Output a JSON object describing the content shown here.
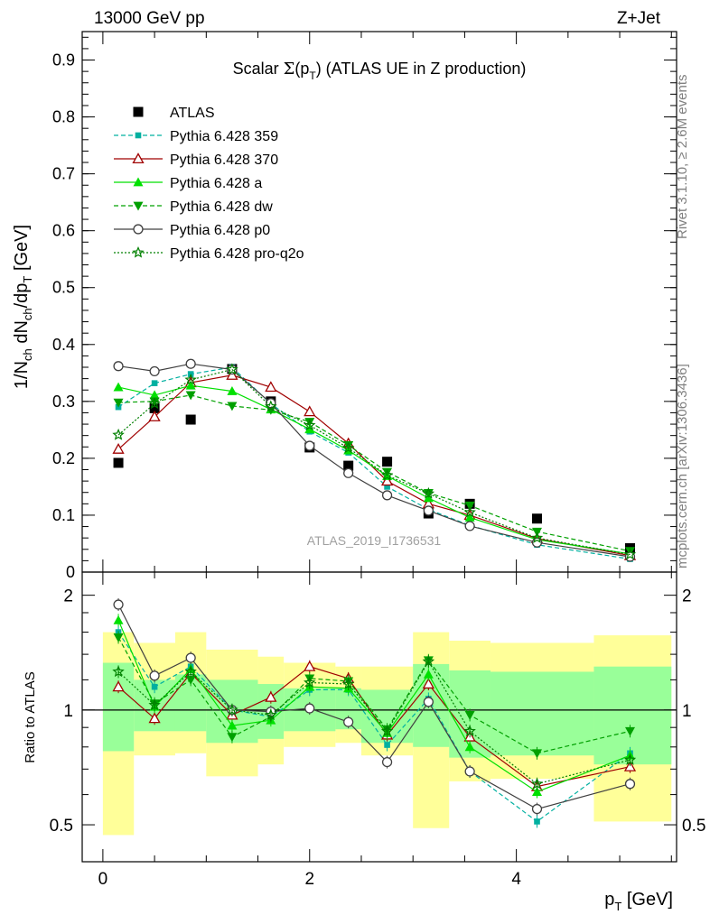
{
  "header": {
    "left": "13000 GeV pp",
    "right": "Z+Jet"
  },
  "side_labels": {
    "rivet": "Rivet 3.1.10, ≥ 2.6M events",
    "mcplots": "mcplots.cern.ch [arXiv:1306.3436]"
  },
  "watermark": "ATLAS_2019_I1736531",
  "chart_data": [
    {
      "type": "line",
      "panel": "main",
      "title": "Scalar Σ(p_T) (ATLAS UE in Z production)",
      "ylabel": "1/N_ch dN_ch/dp_T [GeV]",
      "xlim": [
        -0.2,
        5.55
      ],
      "ylim": [
        0,
        0.95
      ],
      "yticks": [
        "0",
        "0.1",
        "0.2",
        "0.3",
        "0.4",
        "0.5",
        "0.6",
        "0.7",
        "0.8",
        "0.9"
      ],
      "x": [
        0.15,
        0.5,
        0.85,
        1.25,
        1.625,
        2.0,
        2.375,
        2.75,
        3.15,
        3.55,
        4.2,
        5.1
      ],
      "series": [
        {
          "name": "ATLAS",
          "color": "#000000",
          "marker": "square",
          "dash": "none",
          "values": [
            0.192,
            0.288,
            0.268,
            0.357,
            0.3,
            0.219,
            0.187,
            0.194,
            0.103,
            0.12,
            0.094,
            0.042
          ]
        },
        {
          "name": "Pythia 6.428 359",
          "color": "#00b0a0",
          "marker": "square-small",
          "dash": "dashed",
          "values": [
            0.29,
            0.332,
            0.348,
            0.36,
            0.296,
            0.247,
            0.21,
            0.15,
            0.11,
            0.082,
            0.048,
            0.023
          ]
        },
        {
          "name": "Pythia 6.428 370",
          "color": "#a00000",
          "marker": "triangle-open",
          "dash": "solid",
          "values": [
            0.216,
            0.273,
            0.333,
            0.346,
            0.325,
            0.282,
            0.226,
            0.16,
            0.12,
            0.1,
            0.059,
            0.029
          ]
        },
        {
          "name": "Pythia 6.428 a",
          "color": "#00e000",
          "marker": "triangle",
          "dash": "solid",
          "values": [
            0.325,
            0.311,
            0.328,
            0.318,
            0.286,
            0.251,
            0.214,
            0.169,
            0.13,
            0.096,
            0.057,
            0.032
          ]
        },
        {
          "name": "Pythia 6.428 dw",
          "color": "#00a000",
          "marker": "triangle-down",
          "dash": "dashed",
          "values": [
            0.298,
            0.3,
            0.311,
            0.292,
            0.285,
            0.264,
            0.223,
            0.176,
            0.139,
            0.117,
            0.071,
            0.037
          ]
        },
        {
          "name": "Pythia 6.428 p0",
          "color": "#404040",
          "marker": "circle-open",
          "dash": "solid",
          "values": [
            0.362,
            0.353,
            0.366,
            0.356,
            0.297,
            0.222,
            0.174,
            0.135,
            0.108,
            0.081,
            0.052,
            0.027
          ]
        },
        {
          "name": "Pythia 6.428 pro-q2o",
          "color": "#008000",
          "marker": "star",
          "dash": "dotted",
          "values": [
            0.241,
            0.296,
            0.338,
            0.356,
            0.291,
            0.258,
            0.218,
            0.17,
            0.138,
            0.105,
            0.06,
            0.031
          ]
        }
      ]
    },
    {
      "type": "line",
      "panel": "ratio",
      "ylabel": "Ratio to ATLAS",
      "xlabel": "p_T [GeV]",
      "xlim": [
        -0.2,
        5.55
      ],
      "ylim": [
        0.4,
        2.3
      ],
      "log_y": true,
      "yticks": [
        "0.5",
        "1",
        "2"
      ],
      "xticks": [
        "0",
        "2",
        "4"
      ],
      "bin_edges": [
        0.0,
        0.3,
        0.7,
        1.0,
        1.5,
        1.75,
        2.25,
        2.5,
        3.0,
        3.35,
        3.75,
        4.75,
        5.5
      ],
      "band_yellow": [
        [
          0.47,
          1.6
        ],
        [
          0.76,
          1.5
        ],
        [
          0.77,
          1.6
        ],
        [
          0.67,
          1.44
        ],
        [
          0.72,
          1.38
        ],
        [
          0.8,
          1.33
        ],
        [
          0.82,
          1.3
        ],
        [
          0.76,
          1.3
        ],
        [
          0.49,
          1.6
        ],
        [
          0.65,
          1.52
        ],
        [
          0.66,
          1.5
        ],
        [
          0.51,
          1.57
        ]
      ],
      "band_green": [
        [
          0.78,
          1.33
        ],
        [
          0.88,
          1.2
        ],
        [
          0.88,
          1.24
        ],
        [
          0.82,
          1.2
        ],
        [
          0.84,
          1.17
        ],
        [
          0.88,
          1.14
        ],
        [
          0.89,
          1.14
        ],
        [
          0.82,
          1.13
        ],
        [
          0.8,
          1.32
        ],
        [
          0.75,
          1.27
        ],
        [
          0.76,
          1.26
        ],
        [
          0.72,
          1.3
        ]
      ],
      "series": [
        {
          "name": "Pythia 6.428 359",
          "values": [
            1.6,
            1.15,
            1.3,
            1.0,
            0.96,
            1.13,
            1.13,
            0.81,
            1.07,
            0.69,
            0.51,
            0.77
          ]
        },
        {
          "name": "Pythia 6.428 370",
          "values": [
            1.15,
            0.95,
            1.25,
            0.97,
            1.08,
            1.3,
            1.21,
            0.86,
            1.17,
            0.85,
            0.63,
            0.71
          ]
        },
        {
          "name": "Pythia 6.428 a",
          "values": [
            1.72,
            1.02,
            1.28,
            0.91,
            0.94,
            1.15,
            1.14,
            0.87,
            1.24,
            0.8,
            0.61,
            0.76
          ]
        },
        {
          "name": "Pythia 6.428 dw",
          "values": [
            1.55,
            1.04,
            1.2,
            0.85,
            0.96,
            1.21,
            1.19,
            0.89,
            1.35,
            0.97,
            0.77,
            0.88
          ]
        },
        {
          "name": "Pythia 6.428 p0",
          "values": [
            1.89,
            1.23,
            1.37,
            1.0,
            0.99,
            1.01,
            0.93,
            0.73,
            1.05,
            0.69,
            0.55,
            0.64
          ]
        },
        {
          "name": "Pythia 6.428 pro-q2o",
          "values": [
            1.26,
            1.03,
            1.26,
            1.0,
            0.97,
            1.18,
            1.17,
            0.88,
            1.34,
            0.88,
            0.64,
            0.74
          ]
        }
      ]
    }
  ]
}
